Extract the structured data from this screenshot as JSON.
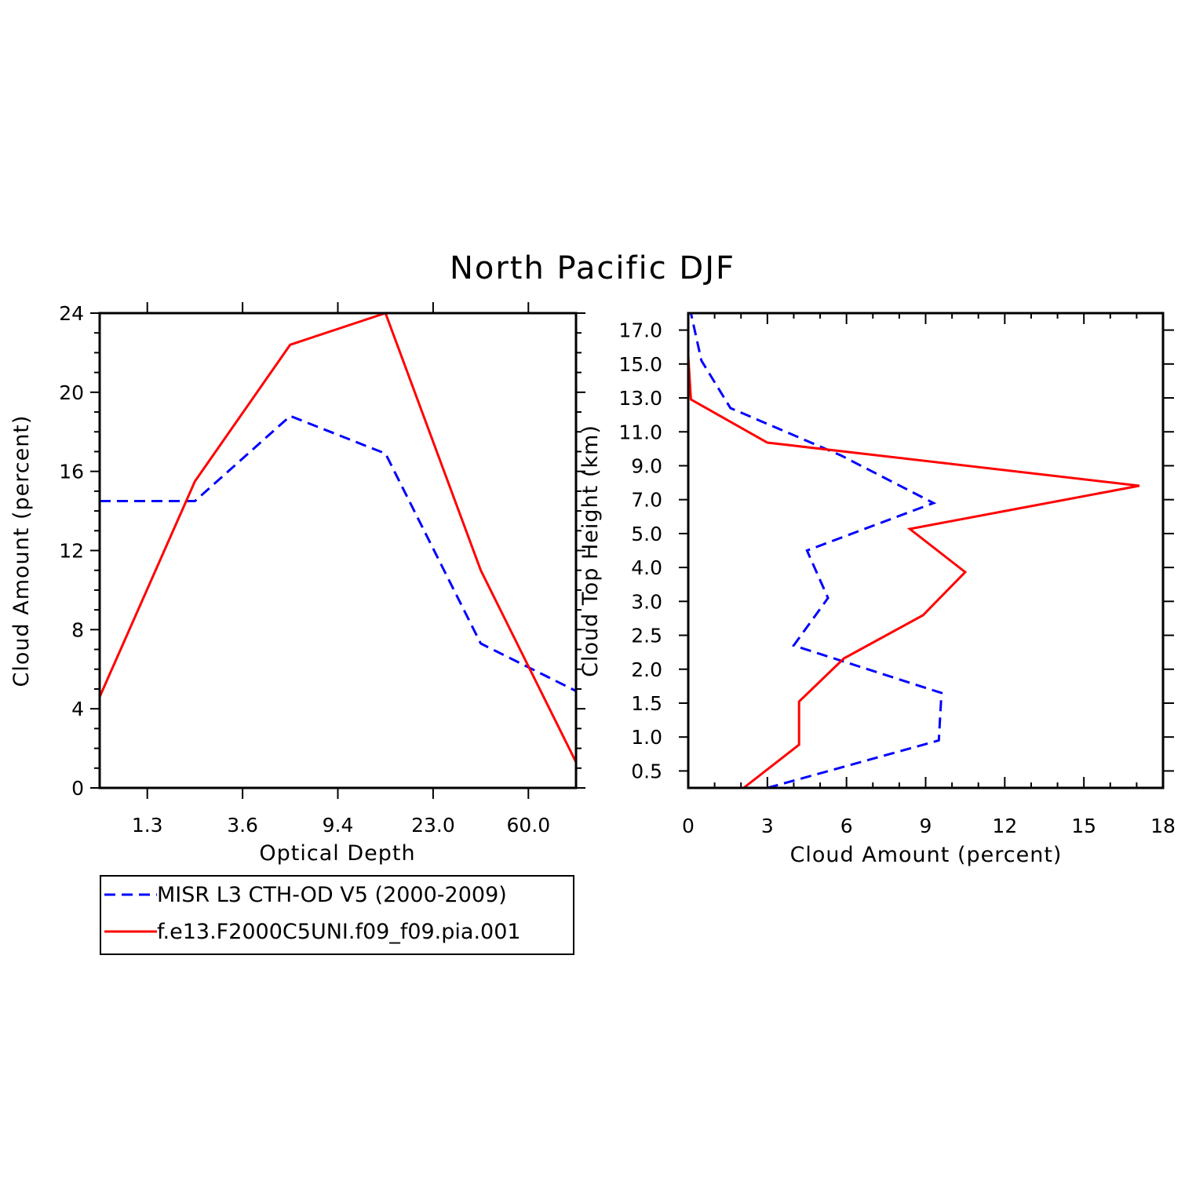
{
  "title": "North Pacific DJF",
  "colors": {
    "obs": "#0000ff",
    "model": "#ff0000",
    "axes": "#000000"
  },
  "legend": {
    "entries": [
      {
        "label": "MISR L3 CTH-OD V5 (2000-2009)",
        "color": "#0000ff",
        "dash": "dashed"
      },
      {
        "label": "f.e13.F2000C5UNI.f09_f09.pia.001",
        "color": "#ff0000",
        "dash": "solid"
      }
    ]
  },
  "chart_data": [
    {
      "type": "line",
      "xlabel": "Optical Depth",
      "ylabel": "Cloud Amount (percent)",
      "x_tick_labels": [
        "1.3",
        "3.6",
        "9.4",
        "23.0",
        "60.0"
      ],
      "x_bins": 6,
      "ylim": [
        0,
        24
      ],
      "y_ticks": [
        0,
        4,
        8,
        12,
        16,
        20,
        24
      ],
      "y_tick_labels": [
        "0",
        "4",
        "8",
        "12",
        "16",
        "20",
        "24"
      ],
      "series": [
        {
          "name": "MISR L3 CTH-OD V5 (2000-2009)",
          "style": "dashed",
          "values": [
            14.5,
            14.5,
            18.8,
            16.9,
            7.3,
            4.9
          ]
        },
        {
          "name": "f.e13.F2000C5UNI.f09_f09.pia.001",
          "style": "solid",
          "values": [
            4.6,
            15.5,
            22.4,
            24.0,
            11.0,
            1.3
          ]
        }
      ]
    },
    {
      "type": "line",
      "xlabel": "Cloud Amount (percent)",
      "ylabel": "Cloud Top Height (km)",
      "xlim": [
        0,
        18
      ],
      "x_ticks": [
        0,
        3,
        6,
        9,
        12,
        15,
        18
      ],
      "x_tick_labels": [
        "0",
        "3",
        "6",
        "9",
        "12",
        "15",
        "18"
      ],
      "y_tick_labels": [
        "0.5",
        "1.0",
        "1.5",
        "2.0",
        "2.5",
        "3.0",
        "4.0",
        "5.0",
        "7.0",
        "9.0",
        "11.0",
        "13.0",
        "15.0",
        "17.0"
      ],
      "y_bins": 14,
      "series": [
        {
          "name": "MISR L3 CTH-OD V5 (2000-2009)",
          "style": "dashed",
          "values": [
            3.0,
            9.5,
            9.6,
            4.0,
            5.3,
            4.5,
            9.3,
            5.8,
            1.6,
            0.5,
            0.1
          ]
        },
        {
          "name": "f.e13.F2000C5UNI.f09_f09.pia.001",
          "style": "solid",
          "values": [
            2.1,
            4.2,
            4.2,
            5.9,
            8.9,
            10.5,
            8.4,
            17.1,
            3.0,
            0.1,
            0.0,
            0.0
          ]
        }
      ]
    }
  ]
}
